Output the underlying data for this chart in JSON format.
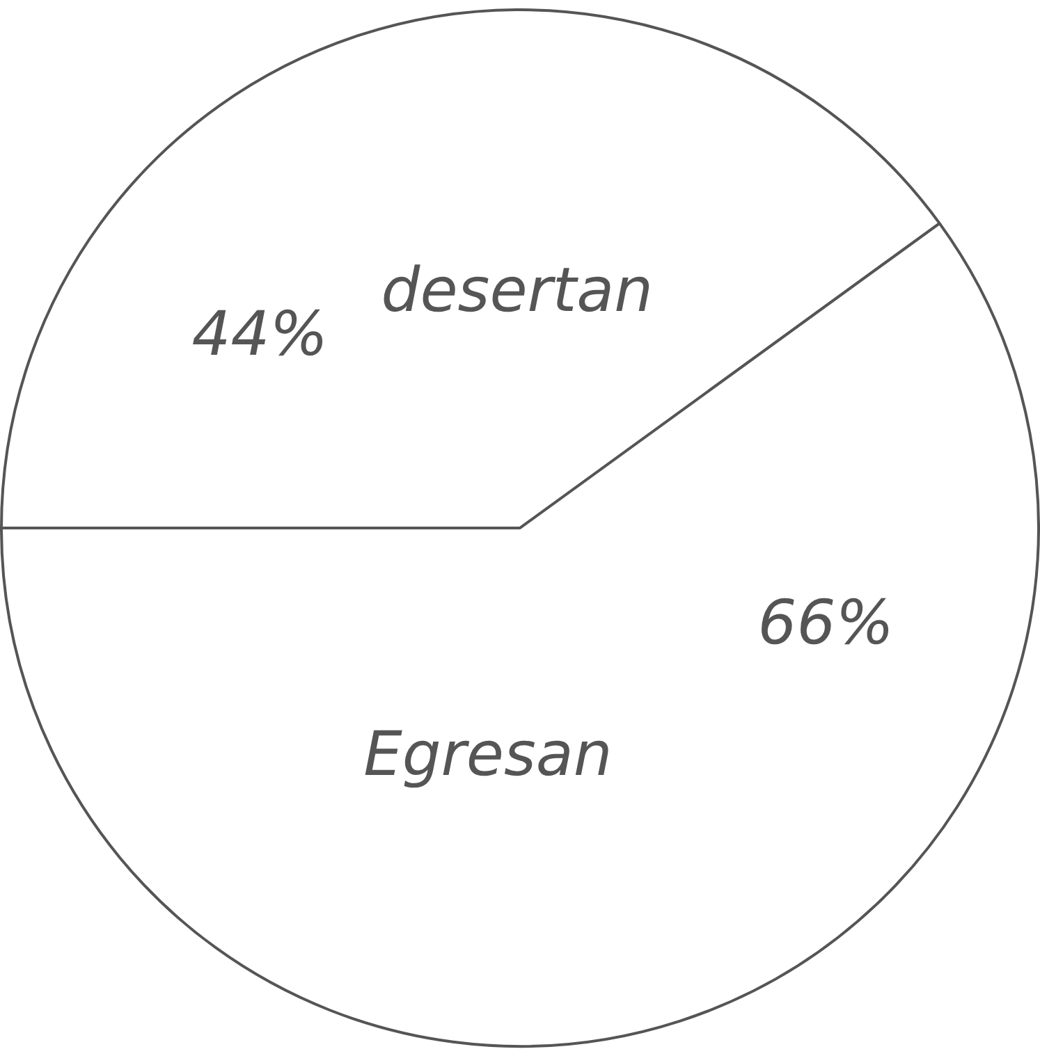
{
  "chart_data": {
    "type": "pie",
    "categories": [
      "desertan",
      "Egresan"
    ],
    "values": [
      44,
      66
    ],
    "colors": [
      "#ffffff",
      "#ffffff"
    ],
    "value_labels": [
      "44%",
      "66%"
    ],
    "legend": false
  }
}
